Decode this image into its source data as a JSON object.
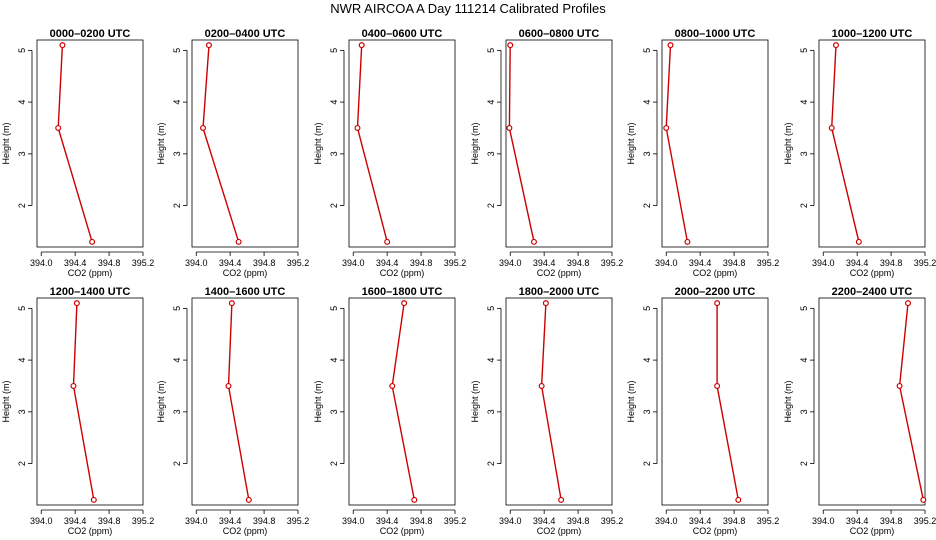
{
  "figure": {
    "title": "NWR AIRCOA A  Day 111214  Calibrated Profiles"
  },
  "chart_data": [
    {
      "type": "line",
      "title": "0000–0200 UTC",
      "xlabel": "CO2 (ppm)",
      "ylabel": "Height (m)",
      "xlim": [
        393.95,
        395.2
      ],
      "ylim": [
        1.2,
        5.2
      ],
      "xticks": [
        "394.0",
        "394.4",
        "394.8",
        "395.2"
      ],
      "yticks": [
        "2",
        "3",
        "4",
        "5"
      ],
      "x": [
        394.6,
        394.2,
        394.25
      ],
      "y": [
        1.3,
        3.5,
        5.1
      ]
    },
    {
      "type": "line",
      "title": "0200–0400 UTC",
      "xlabel": "CO2 (ppm)",
      "ylabel": "Height (m)",
      "xlim": [
        393.95,
        395.2
      ],
      "ylim": [
        1.2,
        5.2
      ],
      "xticks": [
        "394.0",
        "394.4",
        "394.8",
        "395.2"
      ],
      "yticks": [
        "2",
        "3",
        "4",
        "5"
      ],
      "x": [
        394.5,
        394.08,
        394.15
      ],
      "y": [
        1.3,
        3.5,
        5.1
      ]
    },
    {
      "type": "line",
      "title": "0400–0600 UTC",
      "xlabel": "CO2 (ppm)",
      "ylabel": "Height (m)",
      "xlim": [
        393.95,
        395.2
      ],
      "ylim": [
        1.2,
        5.2
      ],
      "xticks": [
        "394.0",
        "394.4",
        "394.8",
        "395.2"
      ],
      "yticks": [
        "2",
        "3",
        "4",
        "5"
      ],
      "x": [
        394.4,
        394.05,
        394.1
      ],
      "y": [
        1.3,
        3.5,
        5.1
      ]
    },
    {
      "type": "line",
      "title": "0600–0800 UTC",
      "xlabel": "CO2 (ppm)",
      "ylabel": "Height (m)",
      "xlim": [
        393.95,
        395.2
      ],
      "ylim": [
        1.2,
        5.2
      ],
      "xticks": [
        "394.0",
        "394.4",
        "394.8",
        "395.2"
      ],
      "yticks": [
        "2",
        "3",
        "4",
        "5"
      ],
      "x": [
        394.28,
        393.99,
        394.0
      ],
      "y": [
        1.3,
        3.5,
        5.1
      ]
    },
    {
      "type": "line",
      "title": "0800–1000 UTC",
      "xlabel": "CO2 (ppm)",
      "ylabel": "Height (m)",
      "xlim": [
        393.95,
        395.2
      ],
      "ylim": [
        1.2,
        5.2
      ],
      "xticks": [
        "394.0",
        "394.4",
        "394.8",
        "395.2"
      ],
      "yticks": [
        "2",
        "3",
        "4",
        "5"
      ],
      "x": [
        394.25,
        394.0,
        394.05
      ],
      "y": [
        1.3,
        3.5,
        5.1
      ]
    },
    {
      "type": "line",
      "title": "1000–1200 UTC",
      "xlabel": "CO2 (ppm)",
      "ylabel": "Height (m)",
      "xlim": [
        393.95,
        395.2
      ],
      "ylim": [
        1.2,
        5.2
      ],
      "xticks": [
        "394.0",
        "394.4",
        "394.8",
        "395.2"
      ],
      "yticks": [
        "2",
        "3",
        "4",
        "5"
      ],
      "x": [
        394.42,
        394.1,
        394.15
      ],
      "y": [
        1.3,
        3.5,
        5.1
      ]
    },
    {
      "type": "line",
      "title": "1200–1400 UTC",
      "xlabel": "CO2 (ppm)",
      "ylabel": "Height (m)",
      "xlim": [
        393.95,
        395.2
      ],
      "ylim": [
        1.2,
        5.2
      ],
      "xticks": [
        "394.0",
        "394.4",
        "394.8",
        "395.2"
      ],
      "yticks": [
        "2",
        "3",
        "4",
        "5"
      ],
      "x": [
        394.62,
        394.38,
        394.42
      ],
      "y": [
        1.3,
        3.5,
        5.1
      ]
    },
    {
      "type": "line",
      "title": "1400–1600 UTC",
      "xlabel": "CO2 (ppm)",
      "ylabel": "Height (m)",
      "xlim": [
        393.95,
        395.2
      ],
      "ylim": [
        1.2,
        5.2
      ],
      "xticks": [
        "394.0",
        "394.4",
        "394.8",
        "395.2"
      ],
      "yticks": [
        "2",
        "3",
        "4",
        "5"
      ],
      "x": [
        394.62,
        394.38,
        394.42
      ],
      "y": [
        1.3,
        3.5,
        5.1
      ]
    },
    {
      "type": "line",
      "title": "1600–1800 UTC",
      "xlabel": "CO2 (ppm)",
      "ylabel": "Height (m)",
      "xlim": [
        393.95,
        395.2
      ],
      "ylim": [
        1.2,
        5.2
      ],
      "xticks": [
        "394.0",
        "394.4",
        "394.8",
        "395.2"
      ],
      "yticks": [
        "2",
        "3",
        "4",
        "5"
      ],
      "x": [
        394.72,
        394.46,
        394.6
      ],
      "y": [
        1.3,
        3.5,
        5.1
      ]
    },
    {
      "type": "line",
      "title": "1800–2000 UTC",
      "xlabel": "CO2 (ppm)",
      "ylabel": "Height (m)",
      "xlim": [
        393.95,
        395.2
      ],
      "ylim": [
        1.2,
        5.2
      ],
      "xticks": [
        "394.0",
        "394.4",
        "394.8",
        "395.2"
      ],
      "yticks": [
        "2",
        "3",
        "4",
        "5"
      ],
      "x": [
        394.6,
        394.37,
        394.42
      ],
      "y": [
        1.3,
        3.5,
        5.1
      ]
    },
    {
      "type": "line",
      "title": "2000–2200 UTC",
      "xlabel": "CO2 (ppm)",
      "ylabel": "Height (m)",
      "xlim": [
        393.95,
        395.2
      ],
      "ylim": [
        1.2,
        5.2
      ],
      "xticks": [
        "394.0",
        "394.4",
        "394.8",
        "395.2"
      ],
      "yticks": [
        "2",
        "3",
        "4",
        "5"
      ],
      "x": [
        394.85,
        394.6,
        394.6
      ],
      "y": [
        1.3,
        3.5,
        5.1
      ]
    },
    {
      "type": "line",
      "title": "2200–2400 UTC",
      "xlabel": "CO2 (ppm)",
      "ylabel": "Height (m)",
      "xlim": [
        393.95,
        395.2
      ],
      "ylim": [
        1.2,
        5.2
      ],
      "xticks": [
        "394.0",
        "394.4",
        "394.8",
        "395.2"
      ],
      "yticks": [
        "2",
        "3",
        "4",
        "5"
      ],
      "x": [
        395.18,
        394.9,
        395.0
      ],
      "y": [
        1.3,
        3.5,
        5.1
      ]
    }
  ],
  "colors": {
    "series": "#cc0000",
    "frame": "#000000"
  }
}
